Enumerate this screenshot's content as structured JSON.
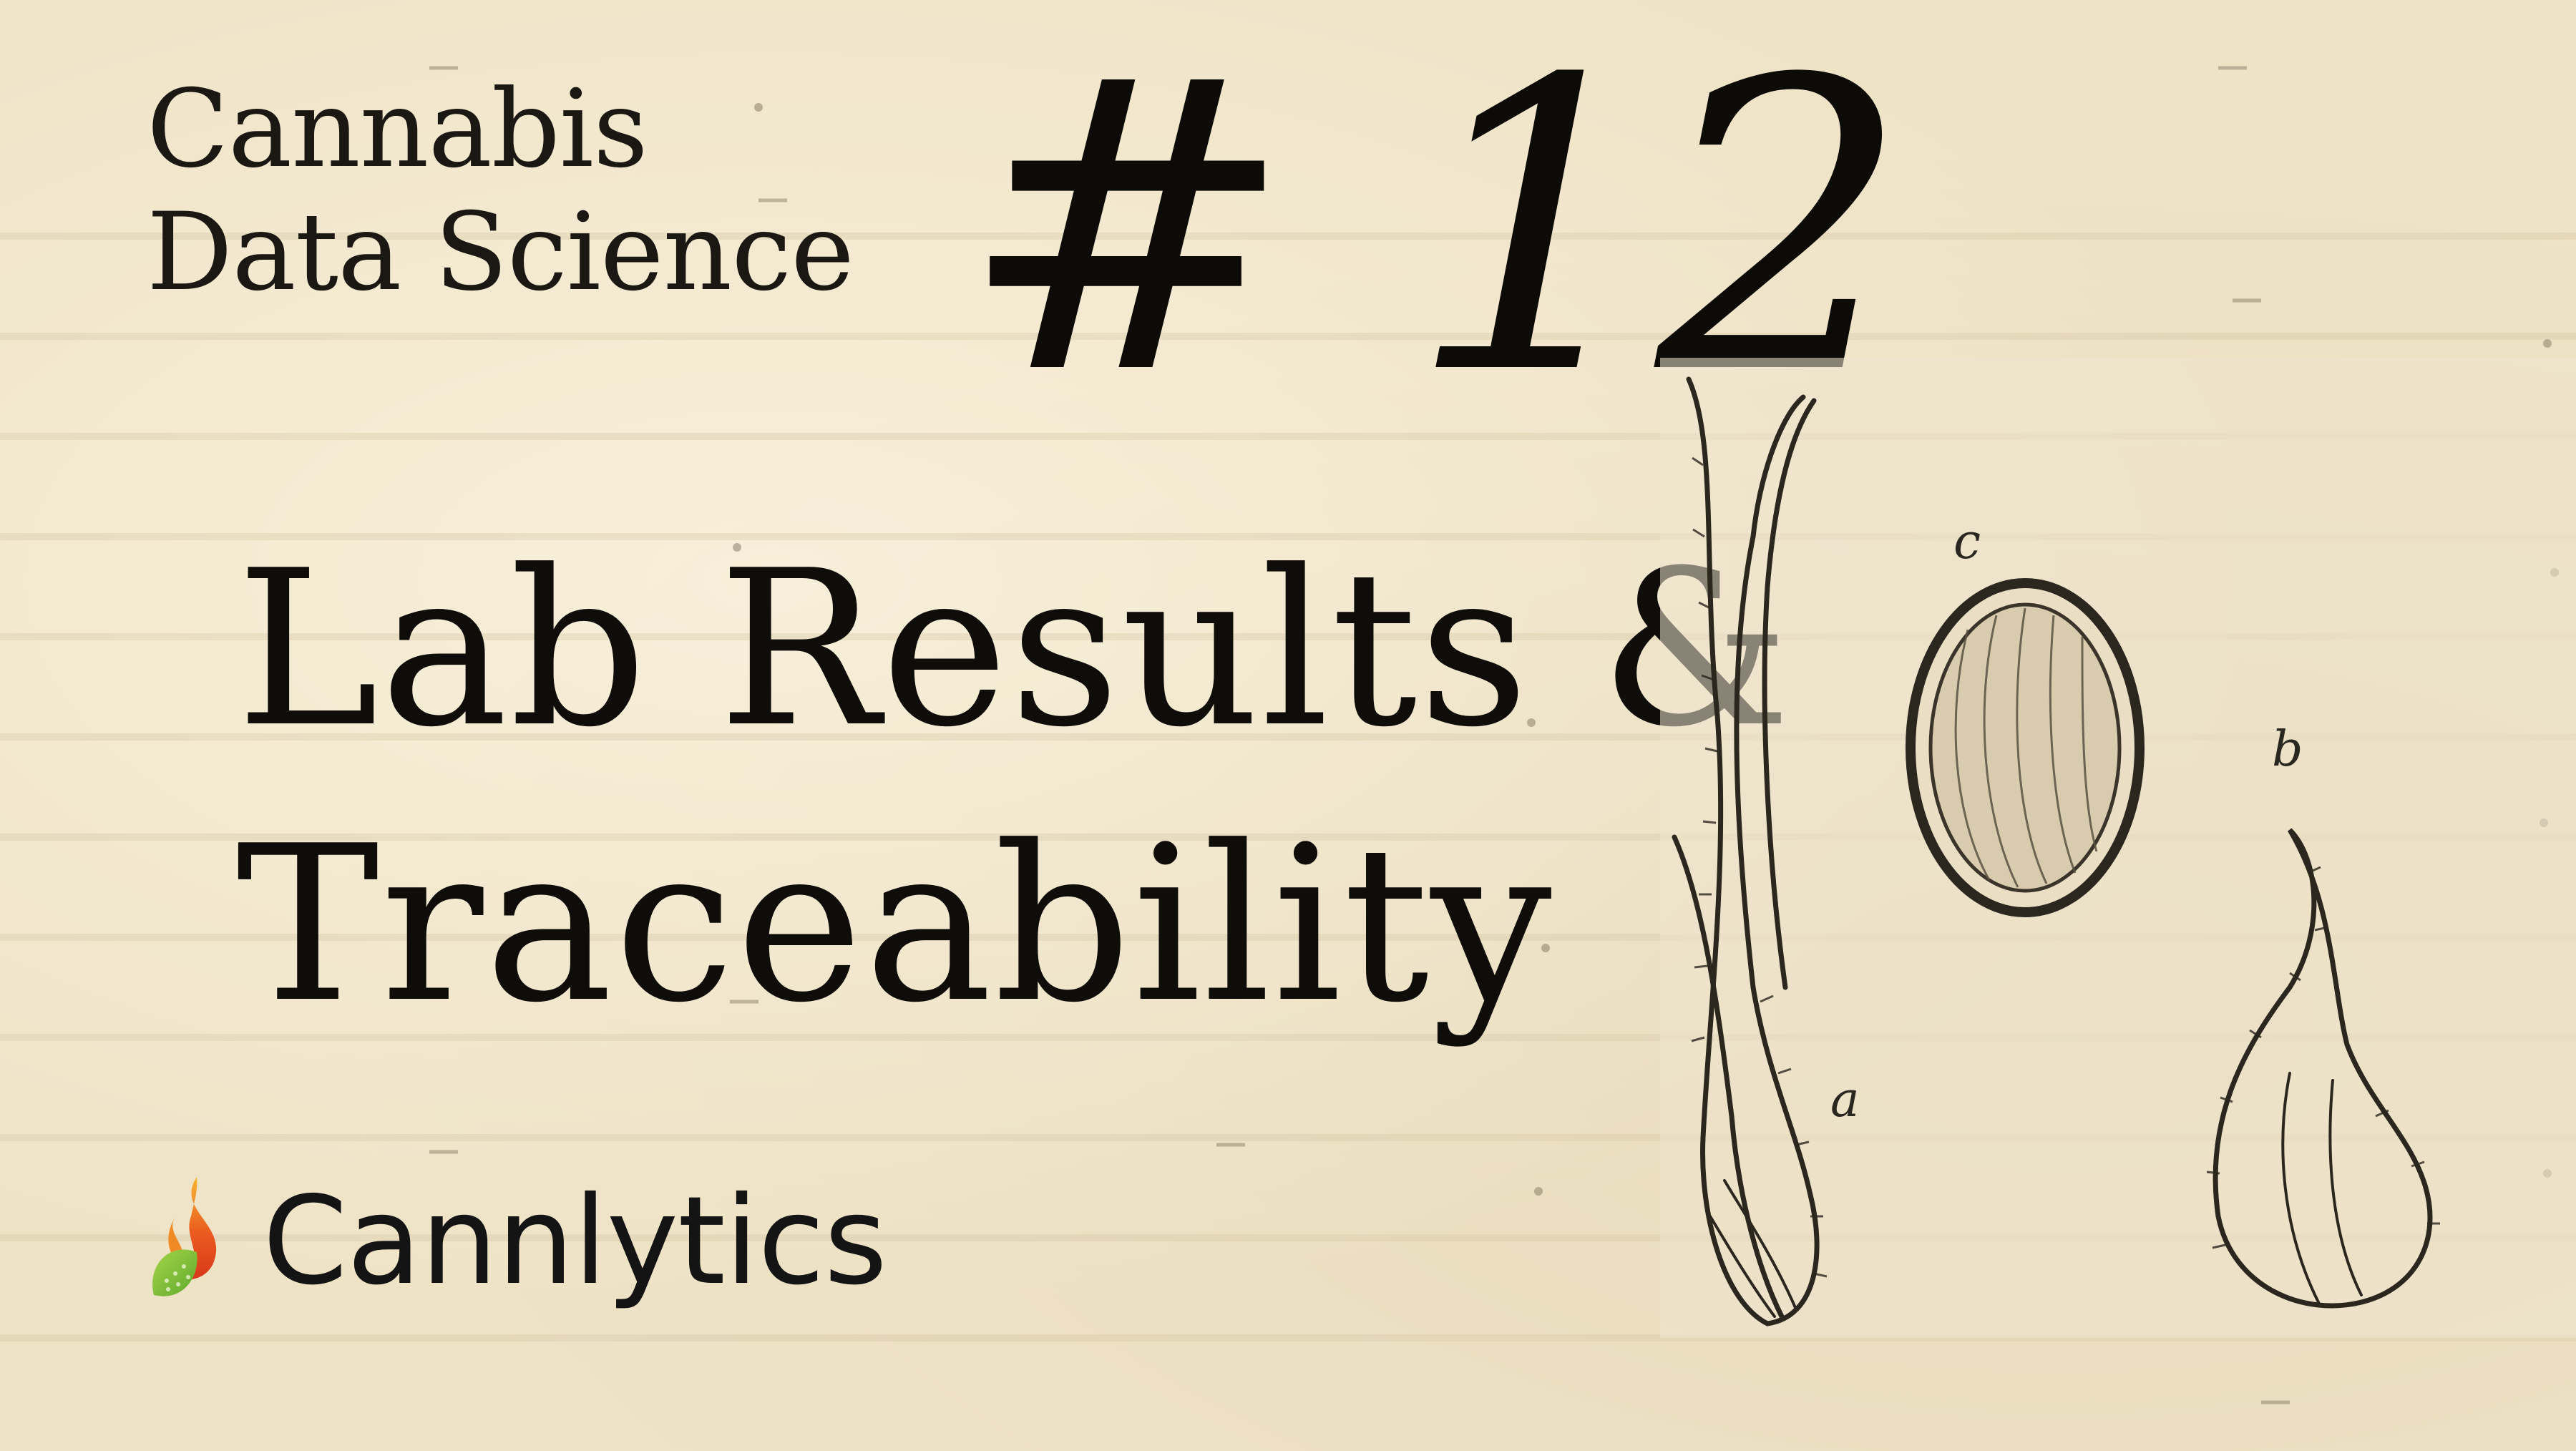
{
  "series": {
    "line1": "Cannabis",
    "line2": "Data Science"
  },
  "episode": {
    "number": "# 12",
    "title_line1": "Lab Results &",
    "title_line2": "Traceability"
  },
  "brand": {
    "name": "Cannlytics",
    "logo_icon": "flame-leaf-icon",
    "logo_colors": [
      "#f5a623",
      "#e8461e",
      "#8cc63f"
    ]
  },
  "illustration": {
    "labels": {
      "a": "a",
      "b": "b",
      "c": "c"
    }
  },
  "colors": {
    "background": "#efe3c6",
    "text": "#111111"
  }
}
